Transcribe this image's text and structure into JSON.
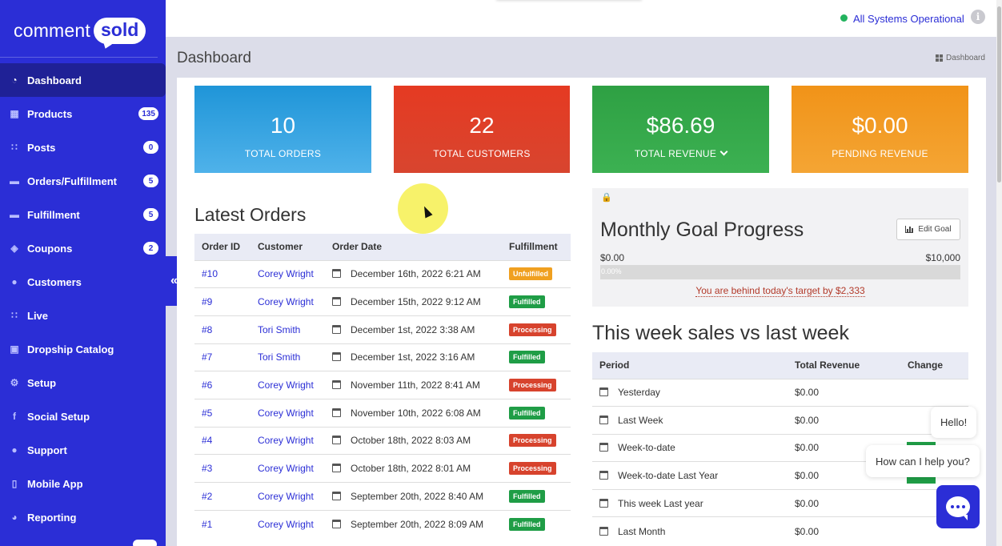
{
  "brand": {
    "logo_left": "comment",
    "logo_right": "sold"
  },
  "colors": {
    "primary": "#2b2ed6",
    "blue": "#1f95d8",
    "red": "#e53a22",
    "green": "#2ea043",
    "orange": "#f19318"
  },
  "sidebar": {
    "items": [
      {
        "label": "Dashboard",
        "icon": "dashboard-icon",
        "badge": ""
      },
      {
        "label": "Products",
        "icon": "grid-icon",
        "badge": "135"
      },
      {
        "label": "Posts",
        "icon": "rss-icon",
        "badge": "0"
      },
      {
        "label": "Orders/Fulfillment",
        "icon": "truck-icon",
        "badge": "5"
      },
      {
        "label": "Fulfillment",
        "icon": "truck-icon",
        "badge": "5"
      },
      {
        "label": "Coupons",
        "icon": "tag-icon",
        "badge": "2"
      },
      {
        "label": "Customers",
        "icon": "user-icon",
        "badge": ""
      },
      {
        "label": "Live",
        "icon": "rss-icon",
        "badge": ""
      },
      {
        "label": "Dropship Catalog",
        "icon": "box-icon",
        "badge": ""
      },
      {
        "label": "Setup",
        "icon": "gears-icon",
        "badge": ""
      },
      {
        "label": "Social Setup",
        "icon": "facebook-icon",
        "badge": ""
      },
      {
        "label": "Support",
        "icon": "chat-icon",
        "badge": ""
      },
      {
        "label": "Mobile App",
        "icon": "mobile-icon",
        "badge": ""
      },
      {
        "label": "Reporting",
        "icon": "pie-chart-icon",
        "badge": ""
      }
    ],
    "collapse": "«"
  },
  "topbar": {
    "status": "All Systems Operational",
    "info": "i"
  },
  "page": {
    "title": "Dashboard",
    "breadcrumb": "Dashboard"
  },
  "stats": [
    {
      "value": "10",
      "label": "TOTAL ORDERS"
    },
    {
      "value": "22",
      "label": "TOTAL CUSTOMERS"
    },
    {
      "value": "$86.69",
      "label": "TOTAL REVENUE"
    },
    {
      "value": "$0.00",
      "label": "PENDING REVENUE"
    }
  ],
  "latest_orders": {
    "title": "Latest Orders",
    "headers": [
      "Order ID",
      "Customer",
      "Order Date",
      "Fulfillment"
    ],
    "rows": [
      {
        "id": "#10",
        "customer": "Corey Wright",
        "date": "December 16th, 2022 6:21 AM",
        "status": "Unfulfilled"
      },
      {
        "id": "#9",
        "customer": "Corey Wright",
        "date": "December 15th, 2022 9:12 AM",
        "status": "Fulfilled"
      },
      {
        "id": "#8",
        "customer": "Tori Smith",
        "date": "December 1st, 2022 3:38 AM",
        "status": "Processing"
      },
      {
        "id": "#7",
        "customer": "Tori Smith",
        "date": "December 1st, 2022 3:16 AM",
        "status": "Fulfilled"
      },
      {
        "id": "#6",
        "customer": "Corey Wright",
        "date": "November 11th, 2022 8:41 AM",
        "status": "Processing"
      },
      {
        "id": "#5",
        "customer": "Corey Wright",
        "date": "November 10th, 2022 6:08 AM",
        "status": "Fulfilled"
      },
      {
        "id": "#4",
        "customer": "Corey Wright",
        "date": "October 18th, 2022 8:03 AM",
        "status": "Processing"
      },
      {
        "id": "#3",
        "customer": "Corey Wright",
        "date": "October 18th, 2022 8:01 AM",
        "status": "Processing"
      },
      {
        "id": "#2",
        "customer": "Corey Wright",
        "date": "September 20th, 2022 8:40 AM",
        "status": "Fulfilled"
      },
      {
        "id": "#1",
        "customer": "Corey Wright",
        "date": "September 20th, 2022 8:09 AM",
        "status": "Fulfilled"
      }
    ]
  },
  "goal": {
    "title": "Monthly Goal Progress",
    "edit_label": "Edit Goal",
    "min": "$0.00",
    "max": "$10,000",
    "progress_text": "0.00%",
    "progress_fraction": 0,
    "behind_text": "You are behind today's target by $2,333"
  },
  "week_sales": {
    "title": "This week sales vs last week",
    "headers": [
      "Period",
      "Total Revenue",
      "Change"
    ],
    "rows": [
      {
        "period": "Yesterday",
        "revenue": "$0.00",
        "change": ""
      },
      {
        "period": "Last Week",
        "revenue": "$0.00",
        "change": ""
      },
      {
        "period": "Week-to-date",
        "revenue": "$0.00",
        "change": ""
      },
      {
        "period": "Week-to-date Last Year",
        "revenue": "$0.00",
        "change": ""
      },
      {
        "period": "This week Last year",
        "revenue": "$0.00",
        "change": ""
      },
      {
        "period": "Last Month",
        "revenue": "$0.00",
        "change": ""
      }
    ]
  },
  "chat": {
    "hello": "Hello!",
    "help": "How can I help you?"
  }
}
